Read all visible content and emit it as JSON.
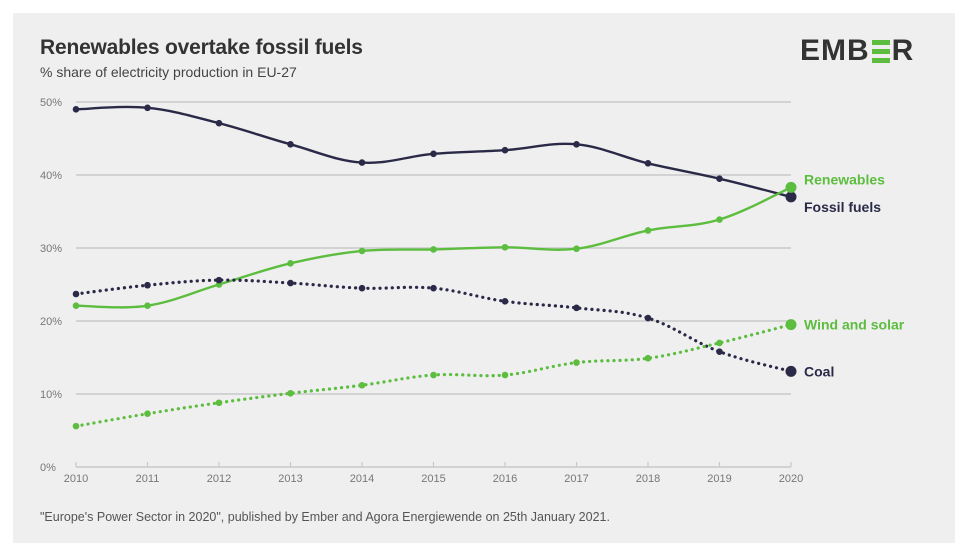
{
  "header": {
    "title": "Renewables overtake fossil fuels",
    "subtitle": "% share of electricity production in EU-27",
    "logo_left": "EMB",
    "logo_right": "R",
    "logo_icon": "green-e-bars"
  },
  "footer": {
    "source": "\"Europe's Power Sector in 2020\", published by Ember and Agora Energiewende on 25th January 2021."
  },
  "colors": {
    "fossil": "#2a2a48",
    "renewable": "#5cbd3f",
    "grid": "#c8c8c8",
    "panel": "#efefef"
  },
  "chart_data": {
    "type": "line",
    "title": "Renewables overtake fossil fuels",
    "subtitle": "% share of electricity production in EU-27",
    "xlabel": "",
    "ylabel": "",
    "x": [
      2010,
      2011,
      2012,
      2013,
      2014,
      2015,
      2016,
      2017,
      2018,
      2019,
      2020
    ],
    "x_tick_labels": [
      "2010",
      "2011",
      "2012",
      "2013",
      "2014",
      "2015",
      "2016",
      "2017",
      "2018",
      "2019",
      "2020"
    ],
    "ylim": [
      0,
      50
    ],
    "y_ticks": [
      0,
      10,
      20,
      30,
      40,
      50
    ],
    "y_tick_labels": [
      "0%",
      "10%",
      "20%",
      "30%",
      "40%",
      "50%"
    ],
    "grid": true,
    "legend": "direct-labels-right",
    "series": [
      {
        "name": "Fossil fuels",
        "style": "solid",
        "color": "#2a2a48",
        "values": [
          49.0,
          49.2,
          47.1,
          44.2,
          41.7,
          42.9,
          43.4,
          44.2,
          41.6,
          39.5,
          37.0
        ]
      },
      {
        "name": "Renewables",
        "style": "solid",
        "color": "#5cbd3f",
        "values": [
          22.1,
          22.1,
          25.0,
          27.9,
          29.6,
          29.8,
          30.1,
          29.9,
          32.4,
          33.9,
          38.3
        ]
      },
      {
        "name": "Coal",
        "style": "dotted",
        "color": "#2a2a48",
        "values": [
          23.7,
          24.9,
          25.6,
          25.2,
          24.5,
          24.5,
          22.7,
          21.8,
          20.4,
          15.8,
          13.1
        ]
      },
      {
        "name": "Wind and solar",
        "style": "dotted",
        "color": "#5cbd3f",
        "values": [
          5.6,
          7.3,
          8.8,
          10.1,
          11.2,
          12.6,
          12.6,
          14.3,
          14.9,
          17.0,
          19.5
        ]
      }
    ]
  }
}
